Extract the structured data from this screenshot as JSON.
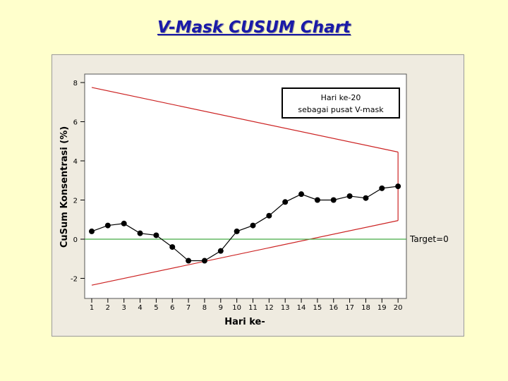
{
  "slide": {
    "title": "V-Mask CUSUM Chart"
  },
  "chart_data": {
    "type": "line",
    "title": "",
    "xlabel": "Hari ke-",
    "ylabel": "CuSum Konsentrasi (%)",
    "x": [
      1,
      2,
      3,
      4,
      5,
      6,
      7,
      8,
      9,
      10,
      11,
      12,
      13,
      14,
      15,
      16,
      17,
      18,
      19,
      20
    ],
    "xticks": [
      "1",
      "2",
      "3",
      "4",
      "5",
      "6",
      "7",
      "8",
      "9",
      "10",
      "11",
      "12",
      "13",
      "14",
      "15",
      "16",
      "17",
      "18",
      "19",
      "20"
    ],
    "yticks": [
      "8",
      "6",
      "4",
      "2",
      "0",
      "-2"
    ],
    "ylim": [
      -2.8,
      8
    ],
    "series": [
      {
        "values": [
          0.4,
          0.7,
          0.8,
          0.3,
          0.2,
          -0.4,
          -1.1,
          -1.1,
          -0.6,
          0.4,
          0.7,
          1.2,
          1.9,
          2.3,
          2.0,
          2.0,
          2.2,
          2.1,
          2.6,
          2.7
        ]
      }
    ],
    "vmask": {
      "upper": [
        [
          1,
          7.75
        ],
        [
          20,
          4.45
        ]
      ],
      "lower": [
        [
          1,
          -2.35
        ],
        [
          20,
          0.95
        ]
      ],
      "vertex_x": 20
    },
    "target": {
      "value": 0,
      "label": "Target=0"
    },
    "annotation": {
      "line1": "Hari ke-20",
      "line2": "sebagai pusat V-mask"
    },
    "grid": false,
    "colors": {
      "series": "#000000",
      "mask": "#cc2222",
      "target": "#44aa44"
    }
  }
}
